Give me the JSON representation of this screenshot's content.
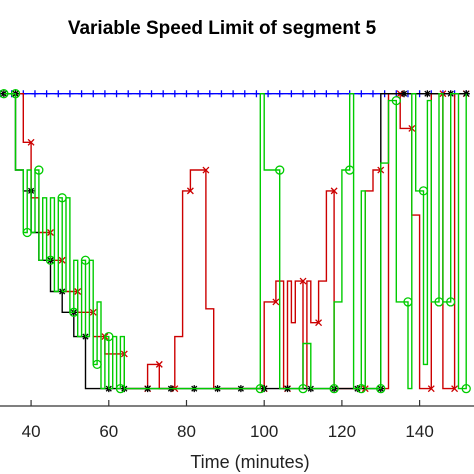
{
  "chart_data": {
    "type": "line",
    "title": "Variable Speed Limit of segment 5",
    "xlabel": "Time (minutes)",
    "ylabel": "",
    "xlim": [
      32,
      154
    ],
    "ylim": [
      0,
      1
    ],
    "xticks": [
      40,
      60,
      80,
      100,
      120,
      140
    ],
    "grid": false,
    "legend": "none",
    "series": [
      {
        "color": "#0000ff",
        "marker": "plus",
        "points": [
          [
            32,
            0.9
          ],
          [
            35,
            0.9
          ],
          [
            38,
            0.9
          ],
          [
            41,
            0.9
          ],
          [
            44,
            0.9
          ],
          [
            47,
            0.9
          ],
          [
            50,
            0.9
          ],
          [
            53,
            0.9
          ],
          [
            56,
            0.9
          ],
          [
            59,
            0.9
          ],
          [
            62,
            0.9
          ],
          [
            65,
            0.9
          ],
          [
            68,
            0.9
          ],
          [
            71,
            0.9
          ],
          [
            74,
            0.9
          ],
          [
            77,
            0.9
          ],
          [
            80,
            0.9
          ],
          [
            83,
            0.9
          ],
          [
            86,
            0.9
          ],
          [
            89,
            0.9
          ],
          [
            92,
            0.9
          ],
          [
            95,
            0.9
          ],
          [
            98,
            0.9
          ],
          [
            101,
            0.9
          ],
          [
            104,
            0.9
          ],
          [
            107,
            0.9
          ],
          [
            110,
            0.9
          ],
          [
            113,
            0.9
          ],
          [
            116,
            0.9
          ],
          [
            119,
            0.9
          ],
          [
            122,
            0.9
          ],
          [
            125,
            0.9
          ],
          [
            128,
            0.9
          ],
          [
            131,
            0.9
          ],
          [
            134,
            0.9
          ],
          [
            137,
            0.9
          ],
          [
            140,
            0.9
          ],
          [
            143,
            0.9
          ],
          [
            146,
            0.9
          ],
          [
            149,
            0.9
          ],
          [
            152,
            0.9
          ]
        ]
      },
      {
        "color": "#cc0000",
        "marker": "x",
        "points": [
          [
            36,
            0.9
          ],
          [
            38,
            0.9
          ],
          [
            38,
            0.76
          ],
          [
            40,
            0.76
          ],
          [
            40,
            0.6
          ],
          [
            42,
            0.6
          ],
          [
            42,
            0.5
          ],
          [
            45,
            0.5
          ],
          [
            45,
            0.42
          ],
          [
            48,
            0.42
          ],
          [
            48,
            0.33
          ],
          [
            52,
            0.33
          ],
          [
            52,
            0.27
          ],
          [
            56,
            0.27
          ],
          [
            56,
            0.2
          ],
          [
            59,
            0.2
          ],
          [
            59,
            0.15
          ],
          [
            64,
            0.15
          ],
          [
            64,
            0.05
          ],
          [
            70,
            0.05
          ],
          [
            70,
            0.12
          ],
          [
            73,
            0.12
          ],
          [
            73,
            0.05
          ],
          [
            77,
            0.05
          ],
          [
            77,
            0.2
          ],
          [
            79,
            0.2
          ],
          [
            79,
            0.62
          ],
          [
            81,
            0.62
          ],
          [
            81,
            0.68
          ],
          [
            85,
            0.68
          ],
          [
            85,
            0.28
          ],
          [
            87,
            0.28
          ],
          [
            87,
            0.05
          ],
          [
            100,
            0.05
          ],
          [
            100,
            0.3
          ],
          [
            103,
            0.3
          ],
          [
            103,
            0.36
          ],
          [
            105,
            0.36
          ],
          [
            105,
            0.05
          ],
          [
            106,
            0.05
          ],
          [
            106,
            0.36
          ],
          [
            107,
            0.36
          ],
          [
            107,
            0.24
          ],
          [
            108,
            0.24
          ],
          [
            108,
            0.36
          ],
          [
            110,
            0.36
          ],
          [
            110,
            0.05
          ],
          [
            111,
            0.05
          ],
          [
            111,
            0.36
          ],
          [
            112,
            0.36
          ],
          [
            112,
            0.24
          ],
          [
            114,
            0.24
          ],
          [
            114,
            0.36
          ],
          [
            116,
            0.36
          ],
          [
            116,
            0.62
          ],
          [
            118,
            0.62
          ],
          [
            118,
            0.05
          ],
          [
            126,
            0.05
          ],
          [
            126,
            0.62
          ],
          [
            128,
            0.62
          ],
          [
            128,
            0.68
          ],
          [
            130,
            0.68
          ],
          [
            130,
            0.05
          ],
          [
            132,
            0.05
          ],
          [
            132,
            0.9
          ],
          [
            135,
            0.9
          ],
          [
            135,
            0.8
          ],
          [
            138,
            0.8
          ],
          [
            138,
            0.55
          ],
          [
            140,
            0.55
          ],
          [
            140,
            0.05
          ],
          [
            143,
            0.05
          ],
          [
            143,
            0.9
          ],
          [
            146,
            0.9
          ],
          [
            146,
            0.05
          ],
          [
            149,
            0.05
          ],
          [
            149,
            0.9
          ],
          [
            152,
            0.9
          ]
        ]
      },
      {
        "color": "#000000",
        "marker": "asterisk",
        "points": [
          [
            33,
            0.9
          ],
          [
            36,
            0.9
          ],
          [
            36,
            0.68
          ],
          [
            38,
            0.68
          ],
          [
            38,
            0.62
          ],
          [
            40,
            0.62
          ],
          [
            40,
            0.5
          ],
          [
            42,
            0.5
          ],
          [
            42,
            0.42
          ],
          [
            45,
            0.42
          ],
          [
            45,
            0.33
          ],
          [
            48,
            0.33
          ],
          [
            48,
            0.27
          ],
          [
            51,
            0.27
          ],
          [
            51,
            0.2
          ],
          [
            54,
            0.2
          ],
          [
            54,
            0.05
          ],
          [
            60,
            0.05
          ],
          [
            64,
            0.05
          ],
          [
            70,
            0.05
          ],
          [
            76,
            0.05
          ],
          [
            82,
            0.05
          ],
          [
            88,
            0.05
          ],
          [
            94,
            0.05
          ],
          [
            100,
            0.05
          ],
          [
            106,
            0.05
          ],
          [
            112,
            0.05
          ],
          [
            118,
            0.05
          ],
          [
            124,
            0.05
          ],
          [
            130,
            0.05
          ],
          [
            130,
            0.9
          ],
          [
            136,
            0.9
          ],
          [
            142,
            0.9
          ],
          [
            148,
            0.9
          ],
          [
            152,
            0.9
          ]
        ]
      },
      {
        "color": "#00cc00",
        "marker": "circle",
        "points": [
          [
            33,
            0.9
          ],
          [
            36,
            0.9
          ],
          [
            36,
            0.68
          ],
          [
            38,
            0.68
          ],
          [
            38,
            0.5
          ],
          [
            39,
            0.5
          ],
          [
            39,
            0.68
          ],
          [
            40,
            0.68
          ],
          [
            40,
            0.5
          ],
          [
            41,
            0.5
          ],
          [
            41,
            0.68
          ],
          [
            42,
            0.68
          ],
          [
            42,
            0.42
          ],
          [
            43,
            0.42
          ],
          [
            43,
            0.6
          ],
          [
            44,
            0.6
          ],
          [
            44,
            0.42
          ],
          [
            45,
            0.42
          ],
          [
            45,
            0.6
          ],
          [
            46,
            0.6
          ],
          [
            46,
            0.33
          ],
          [
            47,
            0.33
          ],
          [
            47,
            0.6
          ],
          [
            48,
            0.6
          ],
          [
            48,
            0.33
          ],
          [
            49,
            0.33
          ],
          [
            49,
            0.6
          ],
          [
            50,
            0.6
          ],
          [
            50,
            0.27
          ],
          [
            51,
            0.27
          ],
          [
            51,
            0.42
          ],
          [
            52,
            0.42
          ],
          [
            52,
            0.2
          ],
          [
            53,
            0.2
          ],
          [
            53,
            0.42
          ],
          [
            54,
            0.42
          ],
          [
            54,
            0.2
          ],
          [
            55,
            0.2
          ],
          [
            55,
            0.42
          ],
          [
            56,
            0.42
          ],
          [
            56,
            0.12
          ],
          [
            57,
            0.12
          ],
          [
            57,
            0.3
          ],
          [
            58,
            0.3
          ],
          [
            58,
            0.05
          ],
          [
            59,
            0.05
          ],
          [
            59,
            0.2
          ],
          [
            60,
            0.2
          ],
          [
            60,
            0.05
          ],
          [
            61,
            0.05
          ],
          [
            61,
            0.2
          ],
          [
            62,
            0.2
          ],
          [
            62,
            0.05
          ],
          [
            63,
            0.05
          ],
          [
            63,
            0.2
          ],
          [
            64,
            0.2
          ],
          [
            64,
            0.05
          ],
          [
            99,
            0.05
          ],
          [
            99,
            0.9
          ],
          [
            100,
            0.9
          ],
          [
            100,
            0.68
          ],
          [
            104,
            0.68
          ],
          [
            104,
            0.05
          ],
          [
            110,
            0.05
          ],
          [
            110,
            0.18
          ],
          [
            112,
            0.18
          ],
          [
            112,
            0.05
          ],
          [
            118,
            0.05
          ],
          [
            118,
            0.3
          ],
          [
            120,
            0.3
          ],
          [
            120,
            0.68
          ],
          [
            122,
            0.68
          ],
          [
            122,
            0.9
          ],
          [
            123,
            0.9
          ],
          [
            123,
            0.05
          ],
          [
            125,
            0.05
          ],
          [
            125,
            0.62
          ],
          [
            126,
            0.62
          ],
          [
            126,
            0.05
          ],
          [
            130,
            0.05
          ],
          [
            130,
            0.7
          ],
          [
            132,
            0.7
          ],
          [
            132,
            0.88
          ],
          [
            134,
            0.88
          ],
          [
            134,
            0.3
          ],
          [
            137,
            0.3
          ],
          [
            137,
            0.05
          ],
          [
            138,
            0.05
          ],
          [
            138,
            0.9
          ],
          [
            139,
            0.9
          ],
          [
            139,
            0.62
          ],
          [
            141,
            0.62
          ],
          [
            141,
            0.12
          ],
          [
            142,
            0.12
          ],
          [
            142,
            0.88
          ],
          [
            143,
            0.88
          ],
          [
            143,
            0.3
          ],
          [
            145,
            0.3
          ],
          [
            145,
            0.9
          ],
          [
            146,
            0.9
          ],
          [
            146,
            0.3
          ],
          [
            148,
            0.3
          ],
          [
            148,
            0.9
          ],
          [
            150,
            0.9
          ],
          [
            150,
            0.05
          ],
          [
            152,
            0.05
          ],
          [
            152,
            0.9
          ]
        ]
      }
    ]
  }
}
